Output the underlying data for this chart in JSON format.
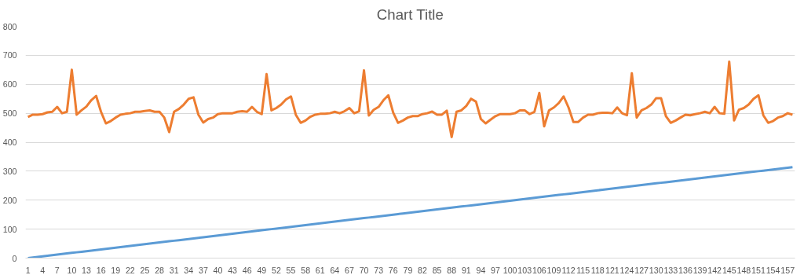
{
  "chart_data": {
    "type": "line",
    "title": "Chart Title",
    "categories": [
      "1",
      null,
      null,
      "4",
      null,
      null,
      "7",
      null,
      null,
      "10",
      null,
      null,
      "13",
      null,
      null,
      "16",
      null,
      null,
      "19",
      null,
      null,
      "22",
      null,
      null,
      "25",
      null,
      null,
      "28",
      null,
      null,
      "31",
      null,
      null,
      "34",
      null,
      null,
      "37",
      null,
      null,
      "40",
      null,
      null,
      "43",
      null,
      null,
      "46",
      null,
      null,
      "49",
      null,
      null,
      "52",
      null,
      null,
      "55",
      null,
      null,
      "58",
      null,
      null,
      "61",
      null,
      null,
      "64",
      null,
      null,
      "67",
      null,
      null,
      "70",
      null,
      null,
      "73",
      null,
      null,
      "76",
      null,
      null,
      "79",
      null,
      null,
      "82",
      null,
      null,
      "85",
      null,
      null,
      "88",
      null,
      null,
      "91",
      null,
      null,
      "94",
      null,
      null,
      "97",
      null,
      null,
      "100",
      null,
      null,
      "103",
      null,
      null,
      "106",
      null,
      null,
      "109",
      null,
      null,
      "112",
      null,
      null,
      "115",
      null,
      null,
      "118",
      null,
      null,
      "121",
      null,
      null,
      "124",
      null,
      null,
      "127",
      null,
      null,
      "130",
      null,
      null,
      "133",
      null,
      null,
      "136",
      null,
      null,
      "139",
      null,
      null,
      "142",
      null,
      null,
      "145",
      null,
      null,
      "148",
      null,
      null,
      "151",
      null,
      null,
      "154",
      null,
      null,
      "157",
      null
    ],
    "series": [
      {
        "color": "#5b9bd5",
        "values": [
          0,
          2,
          4,
          6,
          8,
          10,
          12,
          14,
          16,
          18,
          20,
          22,
          24,
          26,
          28,
          30,
          32,
          34,
          36,
          38,
          40,
          42,
          44,
          46,
          48,
          50,
          52,
          54,
          56,
          58,
          60,
          62,
          64,
          66,
          68,
          70,
          72,
          74,
          76,
          78,
          80,
          82,
          84,
          86,
          88,
          90,
          92,
          94,
          96,
          98,
          100,
          102,
          104,
          106,
          108,
          110,
          112,
          114,
          116,
          118,
          120,
          122,
          124,
          126,
          128,
          130,
          132,
          134,
          136,
          138,
          140,
          142,
          144,
          146,
          148,
          150,
          152,
          154,
          156,
          158,
          160,
          162,
          164,
          166,
          168,
          170,
          172,
          174,
          176,
          178,
          180,
          182,
          184,
          186,
          188,
          190,
          192,
          194,
          196,
          198,
          200,
          202,
          204,
          206,
          208,
          210,
          212,
          214,
          216,
          218,
          220,
          222,
          224,
          226,
          228,
          230,
          232,
          234,
          236,
          238,
          240,
          242,
          244,
          246,
          248,
          250,
          252,
          254,
          256,
          258,
          260,
          262,
          264,
          266,
          268,
          270,
          272,
          274,
          276,
          278,
          280,
          282,
          284,
          286,
          288,
          290,
          292,
          294,
          296,
          298,
          300,
          302,
          304,
          306,
          308,
          310,
          312,
          314
        ]
      },
      {
        "color": "#ed7d31",
        "values": [
          487,
          495,
          495,
          497,
          503,
          505,
          522,
          500,
          505,
          650,
          495,
          510,
          523,
          545,
          560,
          505,
          465,
          473,
          485,
          495,
          498,
          500,
          505,
          505,
          508,
          510,
          505,
          505,
          485,
          435,
          505,
          515,
          530,
          550,
          555,
          495,
          468,
          480,
          485,
          497,
          500,
          500,
          500,
          505,
          507,
          505,
          522,
          505,
          497,
          635,
          510,
          518,
          530,
          548,
          558,
          495,
          467,
          475,
          488,
          495,
          498,
          498,
          500,
          505,
          500,
          507,
          518,
          500,
          507,
          648,
          492,
          512,
          522,
          545,
          562,
          502,
          467,
          475,
          485,
          490,
          490,
          497,
          500,
          506,
          495,
          495,
          509,
          418,
          505,
          510,
          525,
          550,
          540,
          480,
          465,
          478,
          490,
          497,
          497,
          497,
          500,
          510,
          510,
          497,
          505,
          570,
          455,
          510,
          520,
          535,
          558,
          520,
          470,
          470,
          485,
          495,
          495,
          500,
          502,
          502,
          500,
          520,
          500,
          493,
          638,
          485,
          510,
          518,
          530,
          552,
          552,
          490,
          467,
          475,
          485,
          495,
          493,
          497,
          500,
          505,
          500,
          522,
          500,
          498,
          678,
          475,
          512,
          518,
          530,
          550,
          562,
          493,
          467,
          473,
          485,
          490,
          500,
          495
        ]
      }
    ],
    "ylim": [
      0,
      800
    ],
    "yticks": [
      0,
      100,
      200,
      300,
      400,
      500,
      600,
      700,
      800
    ],
    "grid": "y"
  }
}
